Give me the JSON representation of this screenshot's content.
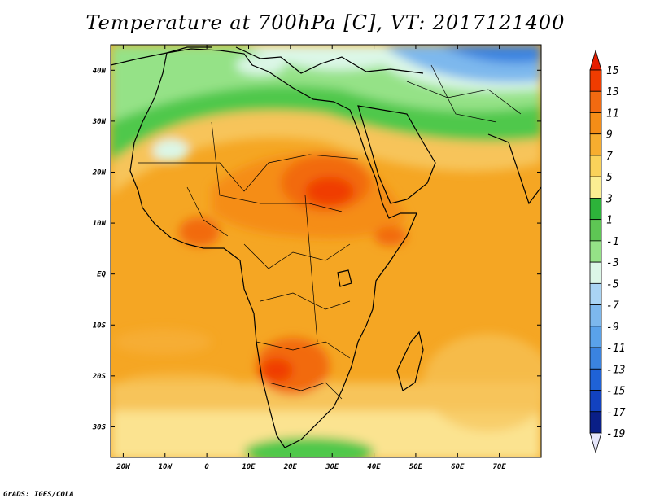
{
  "title": "Temperature at 700hPa [C], VT: 2017121400",
  "credit": "GrADS: IGES/COLA",
  "map": {
    "region": "Africa",
    "lon_range": [
      -23,
      80
    ],
    "lat_range": [
      -36,
      45
    ],
    "lon_ticks": [
      "20W",
      "10W",
      "0",
      "10E",
      "20E",
      "30E",
      "40E",
      "50E",
      "60E",
      "70E"
    ],
    "lat_ticks": [
      "40N",
      "30N",
      "20N",
      "10N",
      "EQ",
      "10S",
      "20S",
      "30S"
    ]
  },
  "colorbar": {
    "labels": [
      "15",
      "13",
      "11",
      "9",
      "7",
      "5",
      "3",
      "1",
      "-1",
      "-3",
      "-5",
      "-7",
      "-9",
      "-11",
      "-13",
      "-15",
      "-17",
      "-19"
    ],
    "colors": [
      "#e61d00",
      "#f03c00",
      "#f26a11",
      "#f58d17",
      "#f7ad2f",
      "#fad25a",
      "#fbee92",
      "#2db33a",
      "#5ec654",
      "#95e287",
      "#dcf7e7",
      "#a9d4f4",
      "#7db8ed",
      "#5aa2ea",
      "#3a83e0",
      "#1f62d6",
      "#1242c0",
      "#0a1f87",
      "#e6e6fa"
    ]
  },
  "colors": {
    "warm_max": "#f03c00",
    "ocean_base": "#f5a623",
    "cool_band": "#4fc84b",
    "cold_north": "#3a83e0"
  }
}
